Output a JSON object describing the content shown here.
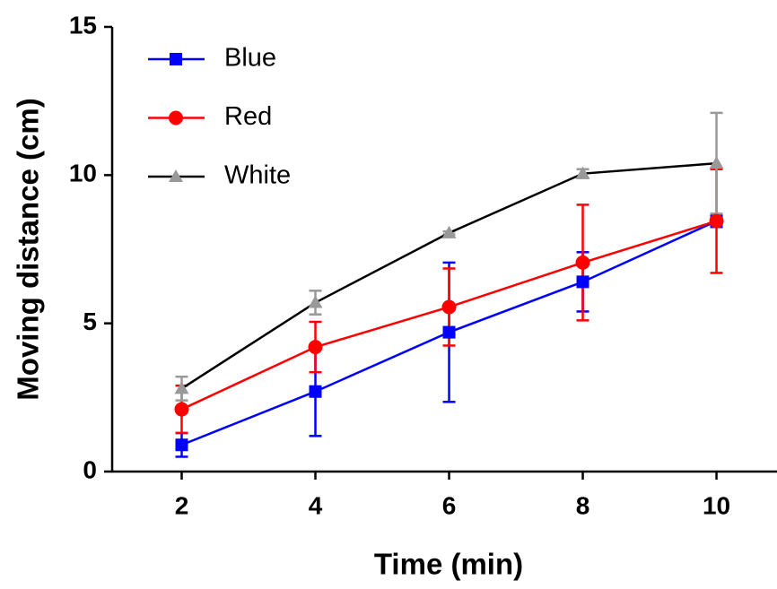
{
  "chart_data": {
    "type": "line",
    "xlabel": "Time (min)",
    "ylabel": "Moving distance (cm)",
    "x": [
      2,
      4,
      6,
      8,
      10
    ],
    "xlim": [
      1,
      10.9
    ],
    "xticks": [
      2,
      4,
      6,
      8,
      10
    ],
    "ylim": [
      0,
      15
    ],
    "yticks": [
      0,
      5,
      10,
      15
    ],
    "series": [
      {
        "name": "Blue",
        "color": "#0000ff",
        "marker_color": "#0000ff",
        "marker": "square",
        "values": [
          0.9,
          2.7,
          4.7,
          6.4,
          8.45
        ],
        "errors": [
          0.4,
          1.5,
          2.35,
          1.0,
          0.2
        ]
      },
      {
        "name": "Red",
        "color": "#ff0000",
        "marker_color": "#ff0000",
        "marker": "circle",
        "values": [
          2.1,
          4.2,
          5.55,
          7.05,
          8.45
        ],
        "errors": [
          0.8,
          0.85,
          1.3,
          1.95,
          1.75
        ]
      },
      {
        "name": "White",
        "color": "#000000",
        "marker_color": "#999999",
        "marker": "triangle",
        "values": [
          2.8,
          5.7,
          8.05,
          10.05,
          10.4
        ],
        "errors": [
          0.4,
          0.4,
          0.05,
          0.15,
          1.7
        ]
      }
    ]
  }
}
